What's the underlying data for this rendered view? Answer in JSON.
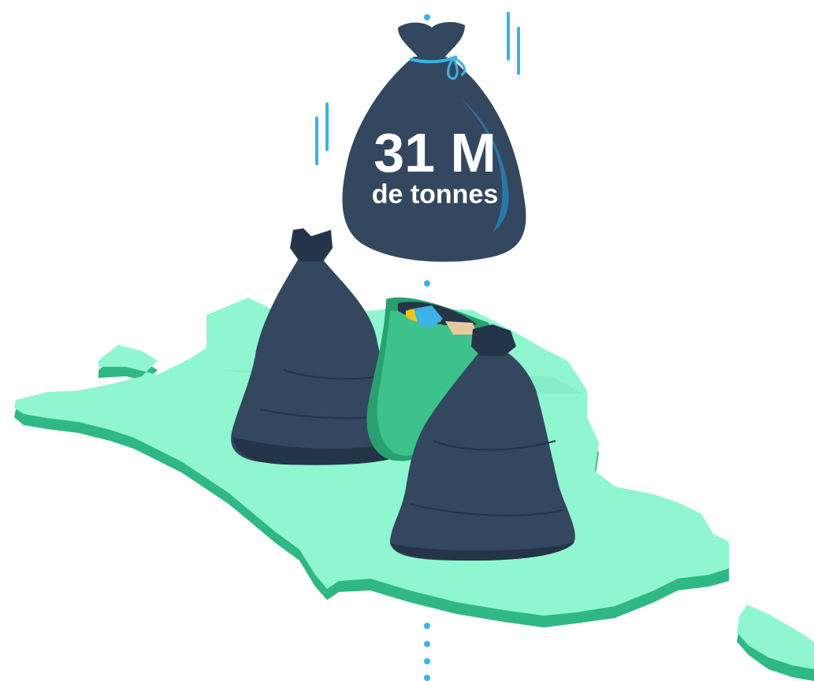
{
  "stat": {
    "value": "31 M",
    "unit": "de tonnes"
  },
  "colors": {
    "background": "#ffffff",
    "map_top": "#8ff6d0",
    "map_side": "#2fb883",
    "bag_dark": "#33475f",
    "bag_shadow": "#243449",
    "bag_green": "#3cc28a",
    "bag_green_dark": "#2aa070",
    "accent_blue": "#3db2e6",
    "text": "#ffffff"
  },
  "icons": [
    "trash-bag-icon",
    "recycling-bag-icon",
    "france-map-icon",
    "motion-lines-icon"
  ]
}
